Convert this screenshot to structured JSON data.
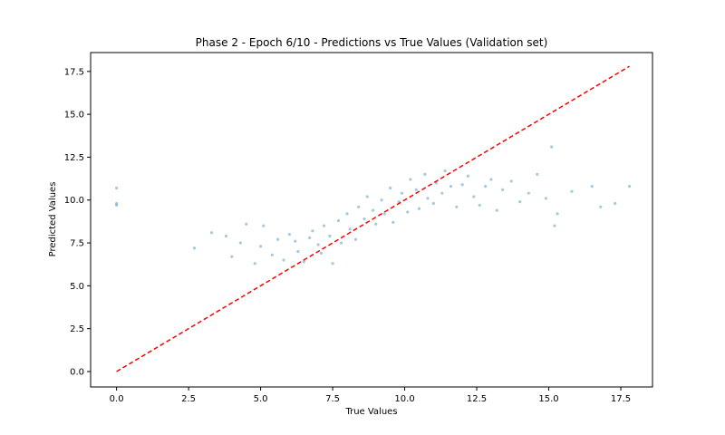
{
  "chart_data": {
    "type": "scatter",
    "title": "Phase 2 - Epoch 6/10 - Predictions vs True Values (Validation set)",
    "xlabel": "True Values",
    "ylabel": "Predicted Values",
    "xlim": [
      -0.9,
      18.6
    ],
    "ylim": [
      -0.9,
      18.6
    ],
    "x_ticks": [
      0.0,
      2.5,
      5.0,
      7.5,
      10.0,
      12.5,
      15.0,
      17.5
    ],
    "x_tick_labels": [
      "0.0",
      "2.5",
      "5.0",
      "7.5",
      "10.0",
      "12.5",
      "15.0",
      "17.5"
    ],
    "y_ticks": [
      0.0,
      2.5,
      5.0,
      7.5,
      10.0,
      12.5,
      15.0,
      17.5
    ],
    "y_tick_labels": [
      "0.0",
      "2.5",
      "5.0",
      "7.5",
      "10.0",
      "12.5",
      "15.0",
      "17.5"
    ],
    "grid": false,
    "series": [
      {
        "kind": "points",
        "color": "#1f77b4",
        "alpha": 0.4,
        "points": [
          [
            0.0,
            10.7
          ],
          [
            0.0,
            9.8
          ],
          [
            0.0,
            9.7
          ],
          [
            2.7,
            7.2
          ],
          [
            3.3,
            8.1
          ],
          [
            3.8,
            7.9
          ],
          [
            4.0,
            6.7
          ],
          [
            4.3,
            7.5
          ],
          [
            4.5,
            8.6
          ],
          [
            4.8,
            6.3
          ],
          [
            5.0,
            7.3
          ],
          [
            5.1,
            8.5
          ],
          [
            5.4,
            6.8
          ],
          [
            5.6,
            7.7
          ],
          [
            5.8,
            6.5
          ],
          [
            6.0,
            8.0
          ],
          [
            6.2,
            7.6
          ],
          [
            6.3,
            7.0
          ],
          [
            6.5,
            6.4
          ],
          [
            6.7,
            7.8
          ],
          [
            6.8,
            8.2
          ],
          [
            7.0,
            7.4
          ],
          [
            7.1,
            6.9
          ],
          [
            7.2,
            8.5
          ],
          [
            7.4,
            7.9
          ],
          [
            7.5,
            6.3
          ],
          [
            7.7,
            8.8
          ],
          [
            7.8,
            7.5
          ],
          [
            8.0,
            9.2
          ],
          [
            8.1,
            8.3
          ],
          [
            8.3,
            7.7
          ],
          [
            8.4,
            9.6
          ],
          [
            8.6,
            8.9
          ],
          [
            8.7,
            10.2
          ],
          [
            8.9,
            9.4
          ],
          [
            9.0,
            8.6
          ],
          [
            9.2,
            10.0
          ],
          [
            9.3,
            9.2
          ],
          [
            9.5,
            10.7
          ],
          [
            9.6,
            8.7
          ],
          [
            9.8,
            9.9
          ],
          [
            9.9,
            10.4
          ],
          [
            10.1,
            9.3
          ],
          [
            10.2,
            11.2
          ],
          [
            10.4,
            10.6
          ],
          [
            10.5,
            9.5
          ],
          [
            10.7,
            11.5
          ],
          [
            10.8,
            10.1
          ],
          [
            11.0,
            9.8
          ],
          [
            11.1,
            11.0
          ],
          [
            11.3,
            10.4
          ],
          [
            11.4,
            11.7
          ],
          [
            11.6,
            10.8
          ],
          [
            11.8,
            9.6
          ],
          [
            12.0,
            10.9
          ],
          [
            12.2,
            11.4
          ],
          [
            12.4,
            10.2
          ],
          [
            12.6,
            9.7
          ],
          [
            12.8,
            10.8
          ],
          [
            13.0,
            11.2
          ],
          [
            13.2,
            9.4
          ],
          [
            13.4,
            10.6
          ],
          [
            13.7,
            11.1
          ],
          [
            14.0,
            9.9
          ],
          [
            14.3,
            10.4
          ],
          [
            14.6,
            11.5
          ],
          [
            14.9,
            10.1
          ],
          [
            15.1,
            13.1
          ],
          [
            15.2,
            8.5
          ],
          [
            15.3,
            9.2
          ],
          [
            15.8,
            10.5
          ],
          [
            16.5,
            10.8
          ],
          [
            16.8,
            9.6
          ],
          [
            17.3,
            9.8
          ],
          [
            17.8,
            10.8
          ]
        ]
      },
      {
        "kind": "reference_line",
        "color": "#ff0000",
        "style": "dashed",
        "points": [
          [
            0.0,
            0.0
          ],
          [
            17.8,
            17.8
          ]
        ]
      }
    ]
  }
}
